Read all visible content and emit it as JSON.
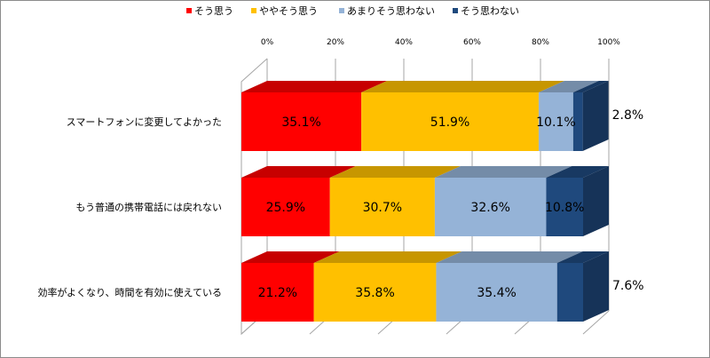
{
  "chart_data": {
    "type": "bar",
    "orientation": "horizontal-stacked-100-3d",
    "categories": [
      "スマートフォンに変更してよかった",
      "もう普通の携帯電話には戻れない",
      "効率がよくなり、時間を有効に使えている"
    ],
    "series": [
      {
        "name": "そう思う",
        "color": "#ff0000",
        "values": [
          35.1,
          25.9,
          21.2
        ]
      },
      {
        "name": "ややそう思う",
        "color": "#ffc000",
        "values": [
          51.9,
          30.7,
          35.8
        ]
      },
      {
        "name": "あまりそう思わない",
        "color": "#95b3d7",
        "values": [
          10.1,
          32.6,
          35.4
        ]
      },
      {
        "name": "そう思わない",
        "color": "#1f497d",
        "values": [
          2.8,
          10.8,
          7.6
        ]
      }
    ],
    "data_labels": [
      [
        "35.1%",
        "51.9%",
        "10.1%",
        "2.8%"
      ],
      [
        "25.9%",
        "30.7%",
        "32.6%",
        "10.8%"
      ],
      [
        "21.2%",
        "35.8%",
        "35.4%",
        "7.6%"
      ]
    ],
    "xticks": [
      "0%",
      "20%",
      "40%",
      "60%",
      "80%",
      "100%"
    ],
    "xlim": [
      0,
      100
    ],
    "legend_position": "top",
    "grid": true
  }
}
